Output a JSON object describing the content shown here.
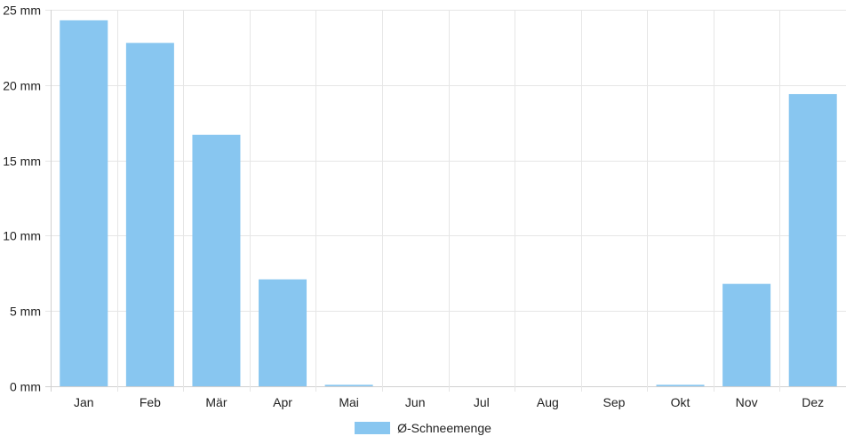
{
  "chart_data": {
    "type": "bar",
    "categories": [
      "Jan",
      "Feb",
      "Mär",
      "Apr",
      "Mai",
      "Jun",
      "Jul",
      "Aug",
      "Sep",
      "Okt",
      "Nov",
      "Dez"
    ],
    "series": [
      {
        "name": "Ø-Schneemenge",
        "values": [
          24.3,
          22.8,
          16.7,
          7.1,
          0.1,
          0,
          0,
          0,
          0,
          0.1,
          6.8,
          19.4
        ]
      }
    ],
    "y_ticks": [
      "0 mm",
      "5 mm",
      "10 mm",
      "15 mm",
      "20 mm",
      "25 mm"
    ],
    "y_tick_values": [
      0,
      5,
      10,
      15,
      20,
      25
    ],
    "ylim": [
      0,
      25
    ],
    "grid": true,
    "legend_position": "bottom",
    "colors": {
      "bar": "#88c6f0",
      "grid": "#e6e6e6",
      "axis": "#d0d0d0"
    }
  }
}
